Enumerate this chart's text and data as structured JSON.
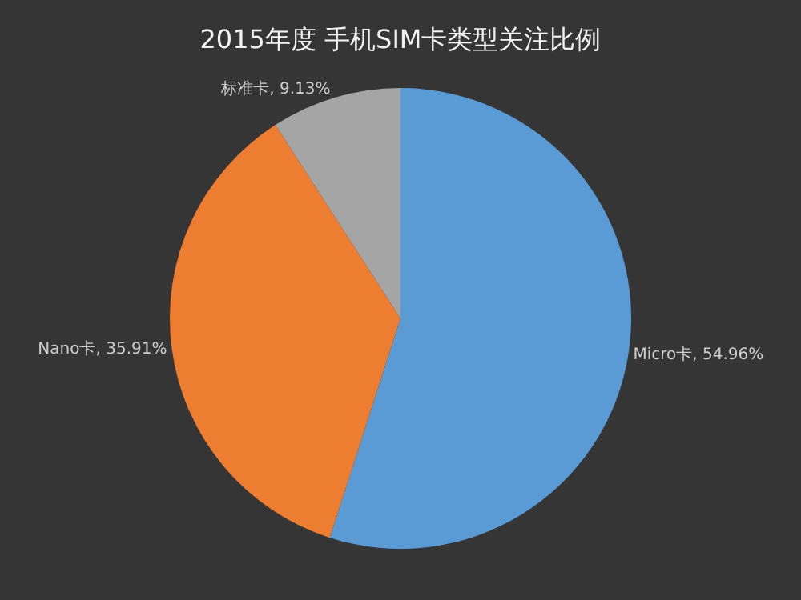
{
  "chart_data": {
    "type": "pie",
    "title": "2015年度 手机SIM卡类型关注比例",
    "categories": [
      "Micro卡",
      "Nano卡",
      "标准卡"
    ],
    "values": [
      54.96,
      35.91,
      9.13
    ],
    "colors": [
      "#5b9bd5",
      "#ed7d31",
      "#a5a5a5"
    ],
    "value_labels": [
      "54.96%",
      "35.91%",
      "9.13%"
    ],
    "legend": false
  }
}
